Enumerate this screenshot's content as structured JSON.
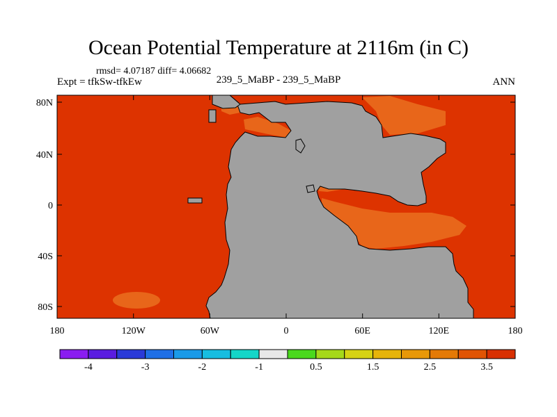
{
  "title": "Ocean Potential Temperature at 2116m (in C)",
  "stats": "rmsd= 4.07187 diff= 4.06682",
  "expt": "Expt = tfkSw-tfkEw",
  "case": "239_5_MaBP - 239_5_MaBP",
  "season": "ANN",
  "lat_ticks": [
    "80N",
    "40N",
    "0",
    "40S",
    "80S"
  ],
  "lon_ticks": [
    "180",
    "120W",
    "60W",
    "0",
    "60E",
    "120E",
    "180"
  ],
  "colorbar": {
    "colors": [
      "#8a1cf0",
      "#5a1ce0",
      "#2a3ad8",
      "#1f6fe6",
      "#1a9ae8",
      "#17bde0",
      "#14d6c8",
      "#e8e8e8",
      "#4ad81e",
      "#a6d81a",
      "#d6d214",
      "#e6b40a",
      "#e89808",
      "#e47a06",
      "#e05404",
      "#d83002"
    ],
    "labels": [
      "-4",
      "-3",
      "-2",
      "-1",
      "0.5",
      "1.5",
      "2.5",
      "3.5"
    ]
  },
  "map_colors": {
    "ocean": "#dd3300",
    "warm": "#e8661a",
    "land": "#a0a0a0"
  }
}
